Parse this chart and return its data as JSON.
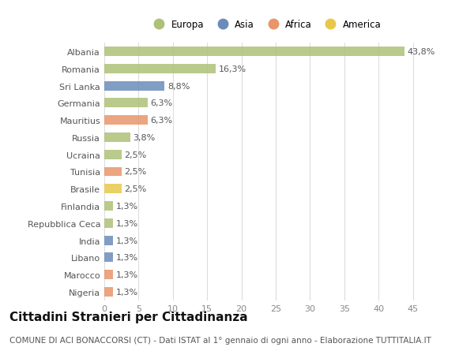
{
  "countries": [
    "Albania",
    "Romania",
    "Sri Lanka",
    "Germania",
    "Mauritius",
    "Russia",
    "Ucraina",
    "Tunisia",
    "Brasile",
    "Finlandia",
    "Repubblica Ceca",
    "India",
    "Libano",
    "Marocco",
    "Nigeria"
  ],
  "values": [
    43.8,
    16.3,
    8.8,
    6.3,
    6.3,
    3.8,
    2.5,
    2.5,
    2.5,
    1.3,
    1.3,
    1.3,
    1.3,
    1.3,
    1.3
  ],
  "labels": [
    "43,8%",
    "16,3%",
    "8,8%",
    "6,3%",
    "6,3%",
    "3,8%",
    "2,5%",
    "2,5%",
    "2,5%",
    "1,3%",
    "1,3%",
    "1,3%",
    "1,3%",
    "1,3%",
    "1,3%"
  ],
  "continents": [
    "Europa",
    "Europa",
    "Asia",
    "Europa",
    "Africa",
    "Europa",
    "Europa",
    "Africa",
    "America",
    "Europa",
    "Europa",
    "Asia",
    "Asia",
    "Africa",
    "Africa"
  ],
  "continent_colors": {
    "Europa": "#adc178",
    "Asia": "#6b8cba",
    "Africa": "#e8956a",
    "America": "#e8c84a"
  },
  "legend_order": [
    "Europa",
    "Asia",
    "Africa",
    "America"
  ],
  "xlim": [
    0,
    47
  ],
  "xticks": [
    0,
    5,
    10,
    15,
    20,
    25,
    30,
    35,
    40,
    45
  ],
  "title": "Cittadini Stranieri per Cittadinanza",
  "subtitle": "COMUNE DI ACI BONACCORSI (CT) - Dati ISTAT al 1° gennaio di ogni anno - Elaborazione TUTTITALIA.IT",
  "background_color": "#ffffff",
  "grid_color": "#dddddd",
  "bar_height": 0.55,
  "label_fontsize": 8,
  "tick_fontsize": 8,
  "title_fontsize": 11,
  "subtitle_fontsize": 7.5
}
